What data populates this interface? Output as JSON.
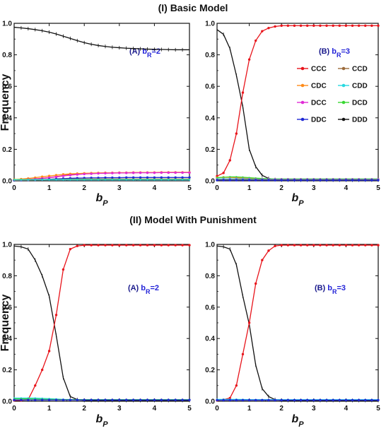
{
  "sections": [
    {
      "title": "(I) Basic Model"
    },
    {
      "title": "(II) Model With Punishment"
    }
  ],
  "colors": {
    "CCC": "#e8141b",
    "CCD": "#9c6b3c",
    "CDC": "#ff8c1a",
    "CDD": "#27d9e0",
    "DCC": "#e02bd6",
    "DCD": "#39d832",
    "DDC": "#1e28d4",
    "DDD": "#111111"
  },
  "legend": {
    "entries": [
      "CCC",
      "CCD",
      "CDC",
      "CDD",
      "DCC",
      "DCD",
      "DDC",
      "DDD"
    ],
    "placement": "upper-right of panel I-B"
  },
  "chart_data": [
    {
      "type": "line",
      "section": "(I) Basic Model",
      "panel_tag": "(A)",
      "annotation": {
        "b": "b",
        "sub": "R",
        "eq": "=2"
      },
      "xlabel": {
        "main": "b",
        "sub": "P"
      },
      "ylabel": "Frequency",
      "xlim": [
        0,
        5
      ],
      "ylim": [
        0,
        1
      ],
      "xticks": [
        0,
        1,
        2,
        3,
        4,
        5
      ],
      "yticks": [
        "0.0",
        "0.2",
        "0.4",
        "0.6",
        "0.8",
        "1.0"
      ],
      "x": [
        0,
        0.2,
        0.4,
        0.6,
        0.8,
        1.0,
        1.2,
        1.4,
        1.6,
        1.8,
        2.0,
        2.2,
        2.4,
        2.6,
        2.8,
        3.0,
        3.2,
        3.4,
        3.6,
        3.8,
        4.0,
        4.2,
        4.4,
        4.6,
        4.8,
        5.0
      ],
      "series": [
        {
          "name": "DDD",
          "values": [
            0.975,
            0.971,
            0.966,
            0.96,
            0.953,
            0.944,
            0.932,
            0.918,
            0.904,
            0.89,
            0.877,
            0.867,
            0.859,
            0.853,
            0.848,
            0.845,
            0.842,
            0.84,
            0.838,
            0.836,
            0.835,
            0.834,
            0.833,
            0.832,
            0.832,
            0.832
          ]
        },
        {
          "name": "CCC",
          "values": [
            0.005,
            0.007,
            0.009,
            0.012,
            0.016,
            0.021,
            0.027,
            0.033,
            0.039,
            0.043,
            0.046,
            0.048,
            0.049,
            0.05,
            0.05,
            0.051,
            0.051,
            0.051,
            0.052,
            0.052,
            0.052,
            0.052,
            0.052,
            0.052,
            0.052,
            0.052
          ]
        },
        {
          "name": "CDC",
          "values": [
            0.008,
            0.011,
            0.015,
            0.02,
            0.026,
            0.031,
            0.036,
            0.041,
            0.044,
            0.046,
            0.048,
            0.049,
            0.05,
            0.051,
            0.051,
            0.052,
            0.052,
            0.053,
            0.053,
            0.053,
            0.053,
            0.054,
            0.054,
            0.054,
            0.054,
            0.054
          ]
        },
        {
          "name": "DCC",
          "values": [
            0.004,
            0.006,
            0.008,
            0.011,
            0.015,
            0.02,
            0.025,
            0.031,
            0.036,
            0.04,
            0.043,
            0.045,
            0.047,
            0.048,
            0.049,
            0.05,
            0.05,
            0.051,
            0.051,
            0.051,
            0.051,
            0.052,
            0.052,
            0.052,
            0.052,
            0.052
          ]
        },
        {
          "name": "DDC",
          "values": [
            0.003,
            0.004,
            0.005,
            0.006,
            0.008,
            0.01,
            0.012,
            0.014,
            0.016,
            0.017,
            0.018,
            0.019,
            0.019,
            0.02,
            0.02,
            0.02,
            0.021,
            0.021,
            0.021,
            0.021,
            0.021,
            0.021,
            0.021,
            0.021,
            0.021,
            0.021
          ]
        },
        {
          "name": "CCD",
          "values": [
            0.003,
            0.004,
            0.004,
            0.005,
            0.006,
            0.007,
            0.008,
            0.009,
            0.01,
            0.01,
            0.011,
            0.011,
            0.011,
            0.011,
            0.011,
            0.011,
            0.011,
            0.011,
            0.011,
            0.011,
            0.011,
            0.011,
            0.011,
            0.011,
            0.011,
            0.011
          ]
        },
        {
          "name": "DCD",
          "values": [
            0.008,
            0.008,
            0.008,
            0.008,
            0.008,
            0.008,
            0.008,
            0.008,
            0.008,
            0.008,
            0.008,
            0.008,
            0.008,
            0.008,
            0.008,
            0.008,
            0.008,
            0.008,
            0.008,
            0.008,
            0.008,
            0.008,
            0.008,
            0.008,
            0.008,
            0.008
          ]
        },
        {
          "name": "CDD",
          "values": [
            0.006,
            0.006,
            0.006,
            0.006,
            0.006,
            0.006,
            0.006,
            0.006,
            0.006,
            0.006,
            0.006,
            0.006,
            0.006,
            0.006,
            0.006,
            0.006,
            0.006,
            0.006,
            0.006,
            0.006,
            0.006,
            0.006,
            0.006,
            0.006,
            0.006,
            0.006
          ]
        }
      ]
    },
    {
      "type": "line",
      "section": "(I) Basic Model",
      "panel_tag": "(B)",
      "annotation": {
        "b": "b",
        "sub": "R",
        "eq": "=3"
      },
      "xlabel": {
        "main": "b",
        "sub": "P"
      },
      "ylabel": "",
      "xlim": [
        0,
        5
      ],
      "ylim": [
        0,
        1
      ],
      "xticks": [
        0,
        1,
        2,
        3,
        4,
        5
      ],
      "yticks": [
        "0.0",
        "0.2",
        "0.4",
        "0.6",
        "0.8",
        "1.0"
      ],
      "x": [
        0,
        0.2,
        0.4,
        0.6,
        0.8,
        1.0,
        1.2,
        1.4,
        1.6,
        1.8,
        2.0,
        2.2,
        2.4,
        2.6,
        2.8,
        3.0,
        3.2,
        3.4,
        3.6,
        3.8,
        4.0,
        4.2,
        4.4,
        4.6,
        4.8,
        5.0
      ],
      "series": [
        {
          "name": "DDD",
          "values": [
            0.96,
            0.93,
            0.84,
            0.67,
            0.47,
            0.2,
            0.09,
            0.035,
            0.015,
            0.008,
            0.005,
            0.005,
            0.005,
            0.005,
            0.005,
            0.005,
            0.005,
            0.005,
            0.005,
            0.005,
            0.005,
            0.005,
            0.005,
            0.005,
            0.005,
            0.005
          ]
        },
        {
          "name": "CCC",
          "values": [
            0.03,
            0.05,
            0.13,
            0.3,
            0.56,
            0.77,
            0.89,
            0.95,
            0.97,
            0.98,
            0.985,
            0.985,
            0.985,
            0.985,
            0.985,
            0.985,
            0.985,
            0.985,
            0.985,
            0.985,
            0.985,
            0.985,
            0.985,
            0.985,
            0.985,
            0.985
          ]
        },
        {
          "name": "CDC",
          "values": [
            0.02,
            0.022,
            0.022,
            0.02,
            0.018,
            0.015,
            0.012,
            0.01,
            0.01,
            0.01,
            0.01,
            0.01,
            0.01,
            0.01,
            0.01,
            0.01,
            0.01,
            0.01,
            0.01,
            0.01,
            0.01,
            0.01,
            0.01,
            0.01,
            0.01,
            0.01
          ]
        },
        {
          "name": "DCD",
          "values": [
            0.02,
            0.023,
            0.025,
            0.025,
            0.023,
            0.02,
            0.017,
            0.015,
            0.013,
            0.012,
            0.012,
            0.012,
            0.012,
            0.012,
            0.012,
            0.012,
            0.012,
            0.012,
            0.012,
            0.012,
            0.012,
            0.012,
            0.012,
            0.012,
            0.012,
            0.012
          ]
        },
        {
          "name": "DCC",
          "values": [
            0.01,
            0.012,
            0.013,
            0.013,
            0.012,
            0.011,
            0.01,
            0.01,
            0.01,
            0.01,
            0.01,
            0.01,
            0.01,
            0.01,
            0.01,
            0.01,
            0.01,
            0.01,
            0.01,
            0.01,
            0.01,
            0.01,
            0.01,
            0.01,
            0.01,
            0.01
          ]
        },
        {
          "name": "CDD",
          "values": [
            0.012,
            0.012,
            0.012,
            0.012,
            0.012,
            0.011,
            0.01,
            0.01,
            0.01,
            0.01,
            0.01,
            0.01,
            0.01,
            0.01,
            0.01,
            0.01,
            0.01,
            0.01,
            0.01,
            0.01,
            0.01,
            0.01,
            0.01,
            0.01,
            0.01,
            0.01
          ]
        },
        {
          "name": "CCD",
          "values": [
            0.008,
            0.008,
            0.008,
            0.008,
            0.008,
            0.008,
            0.008,
            0.008,
            0.008,
            0.008,
            0.008,
            0.008,
            0.008,
            0.008,
            0.008,
            0.008,
            0.008,
            0.008,
            0.008,
            0.008,
            0.008,
            0.008,
            0.008,
            0.008,
            0.008,
            0.008
          ]
        },
        {
          "name": "DDC",
          "values": [
            0.004,
            0.004,
            0.004,
            0.004,
            0.004,
            0.004,
            0.004,
            0.004,
            0.004,
            0.004,
            0.004,
            0.004,
            0.004,
            0.004,
            0.004,
            0.004,
            0.004,
            0.004,
            0.004,
            0.004,
            0.004,
            0.004,
            0.004,
            0.004,
            0.004,
            0.004
          ]
        }
      ]
    },
    {
      "type": "line",
      "section": "(II) Model With Punishment",
      "panel_tag": "(A)",
      "annotation": {
        "b": "b",
        "sub": "R",
        "eq": "=2"
      },
      "xlabel": {
        "main": "b",
        "sub": "P"
      },
      "ylabel": "Frequency",
      "xlim": [
        0,
        5
      ],
      "ylim": [
        0,
        1
      ],
      "xticks": [
        0,
        1,
        2,
        3,
        4,
        5
      ],
      "yticks": [
        "0.0",
        "0.2",
        "0.4",
        "0.6",
        "0.8",
        "1.0"
      ],
      "x": [
        0,
        0.2,
        0.4,
        0.6,
        0.8,
        1.0,
        1.2,
        1.4,
        1.6,
        1.8,
        2.0,
        2.2,
        2.4,
        2.6,
        2.8,
        3.0,
        3.2,
        3.4,
        3.6,
        3.8,
        4.0,
        4.2,
        4.4,
        4.6,
        4.8,
        5.0
      ],
      "series": [
        {
          "name": "DDD",
          "values": [
            0.99,
            0.985,
            0.97,
            0.9,
            0.8,
            0.67,
            0.42,
            0.15,
            0.03,
            0.01,
            0.005,
            0.005,
            0.005,
            0.005,
            0.005,
            0.005,
            0.005,
            0.005,
            0.005,
            0.005,
            0.005,
            0.005,
            0.005,
            0.005,
            0.005,
            0.005
          ]
        },
        {
          "name": "CCC",
          "values": [
            0.005,
            0.005,
            0.01,
            0.1,
            0.2,
            0.32,
            0.55,
            0.84,
            0.97,
            0.99,
            0.995,
            0.995,
            0.995,
            0.995,
            0.995,
            0.995,
            0.995,
            0.995,
            0.995,
            0.995,
            0.995,
            0.995,
            0.995,
            0.995,
            0.995,
            0.995
          ]
        },
        {
          "name": "CDD",
          "values": [
            0.02,
            0.02,
            0.02,
            0.02,
            0.018,
            0.016,
            0.014,
            0.012,
            0.011,
            0.01,
            0.01,
            0.01,
            0.01,
            0.01,
            0.01,
            0.01,
            0.01,
            0.01,
            0.01,
            0.01,
            0.01,
            0.01,
            0.01,
            0.01,
            0.01,
            0.01
          ]
        },
        {
          "name": "DCD",
          "values": [
            0.015,
            0.015,
            0.015,
            0.014,
            0.013,
            0.012,
            0.011,
            0.01,
            0.01,
            0.01,
            0.01,
            0.01,
            0.01,
            0.01,
            0.01,
            0.01,
            0.01,
            0.01,
            0.01,
            0.01,
            0.01,
            0.01,
            0.01,
            0.01,
            0.01,
            0.01
          ]
        },
        {
          "name": "DDC",
          "values": [
            0.008,
            0.008,
            0.008,
            0.008,
            0.008,
            0.008,
            0.008,
            0.008,
            0.008,
            0.008,
            0.008,
            0.008,
            0.008,
            0.008,
            0.008,
            0.008,
            0.008,
            0.008,
            0.008,
            0.008,
            0.008,
            0.008,
            0.008,
            0.008,
            0.008,
            0.008
          ]
        }
      ]
    },
    {
      "type": "line",
      "section": "(II) Model With Punishment",
      "panel_tag": "(B)",
      "annotation": {
        "b": "b",
        "sub": "R",
        "eq": "=3"
      },
      "xlabel": {
        "main": "b",
        "sub": "P"
      },
      "ylabel": "",
      "xlim": [
        0,
        5
      ],
      "ylim": [
        0,
        1
      ],
      "xticks": [
        0,
        1,
        2,
        3,
        4,
        5
      ],
      "yticks": [
        "0.0",
        "0.2",
        "0.4",
        "0.6",
        "0.8",
        "1.0"
      ],
      "x": [
        0,
        0.2,
        0.4,
        0.6,
        0.8,
        1.0,
        1.2,
        1.4,
        1.6,
        1.8,
        2.0,
        2.2,
        2.4,
        2.6,
        2.8,
        3.0,
        3.2,
        3.4,
        3.6,
        3.8,
        4.0,
        4.2,
        4.4,
        4.6,
        4.8,
        5.0
      ],
      "series": [
        {
          "name": "DDD",
          "values": [
            0.99,
            0.985,
            0.97,
            0.87,
            0.67,
            0.49,
            0.23,
            0.08,
            0.03,
            0.01,
            0.005,
            0.005,
            0.005,
            0.005,
            0.005,
            0.005,
            0.005,
            0.005,
            0.005,
            0.005,
            0.005,
            0.005,
            0.005,
            0.005,
            0.005,
            0.005
          ]
        },
        {
          "name": "CCC",
          "values": [
            0.005,
            0.01,
            0.02,
            0.1,
            0.3,
            0.5,
            0.75,
            0.9,
            0.96,
            0.99,
            0.995,
            0.995,
            0.995,
            0.995,
            0.995,
            0.995,
            0.995,
            0.995,
            0.995,
            0.995,
            0.995,
            0.995,
            0.995,
            0.995,
            0.995,
            0.995
          ]
        },
        {
          "name": "CDD",
          "values": [
            0.012,
            0.012,
            0.012,
            0.012,
            0.011,
            0.01,
            0.01,
            0.01,
            0.01,
            0.01,
            0.01,
            0.01,
            0.01,
            0.01,
            0.01,
            0.01,
            0.01,
            0.01,
            0.01,
            0.01,
            0.01,
            0.01,
            0.01,
            0.01,
            0.01,
            0.01
          ]
        },
        {
          "name": "DDC",
          "values": [
            0.007,
            0.007,
            0.007,
            0.007,
            0.007,
            0.007,
            0.007,
            0.007,
            0.007,
            0.007,
            0.007,
            0.007,
            0.007,
            0.007,
            0.007,
            0.007,
            0.007,
            0.007,
            0.007,
            0.007,
            0.007,
            0.007,
            0.007,
            0.007,
            0.007,
            0.007
          ]
        }
      ]
    }
  ]
}
